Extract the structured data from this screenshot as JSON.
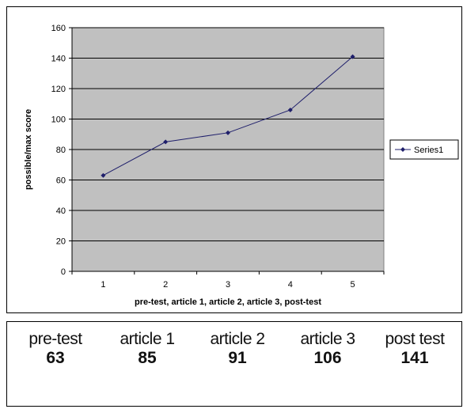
{
  "chart_data": {
    "type": "line",
    "x": [
      1,
      2,
      3,
      4,
      5
    ],
    "series": [
      {
        "name": "Series1",
        "values": [
          63,
          85,
          91,
          106,
          141
        ],
        "color": "#1f1f6b"
      }
    ],
    "xlabel": "pre-test, article 1, article 2, article 3, post-test",
    "ylabel": "possible/max score",
    "ylim": [
      0,
      160
    ],
    "yticks": [
      0,
      20,
      40,
      60,
      80,
      100,
      120,
      140,
      160
    ],
    "xticks": [
      "1",
      "2",
      "3",
      "4",
      "5"
    ],
    "grid": true,
    "plot_background": "#c0c0c0",
    "legend": "right"
  },
  "score_table": {
    "columns": [
      {
        "label": "pre-test",
        "value": "63"
      },
      {
        "label": "article 1",
        "value": "85"
      },
      {
        "label": "article 2",
        "value": "91"
      },
      {
        "label": "article 3",
        "value": "106"
      },
      {
        "label": "post test",
        "value": "141"
      }
    ]
  }
}
